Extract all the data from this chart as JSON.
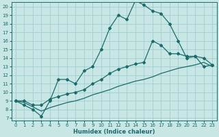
{
  "xlabel": "Humidex (Indice chaleur)",
  "bg_color": "#c8e6e4",
  "grid_color": "#9ecece",
  "line_color": "#1a6b6b",
  "xlim": [
    0,
    23
  ],
  "ylim": [
    7,
    20
  ],
  "xticks": [
    0,
    1,
    2,
    3,
    4,
    5,
    6,
    7,
    8,
    9,
    10,
    11,
    12,
    13,
    14,
    15,
    16,
    17,
    18,
    19,
    20,
    21,
    22,
    23
  ],
  "yticks": [
    7,
    8,
    9,
    10,
    11,
    12,
    13,
    14,
    15,
    16,
    17,
    18,
    19,
    20
  ],
  "line1_x": [
    0,
    1,
    2,
    3,
    4,
    5,
    6,
    7,
    8,
    9,
    10,
    11,
    12,
    13,
    14,
    15,
    16,
    17,
    18,
    19,
    20,
    21,
    22,
    23
  ],
  "line1_y": [
    9.0,
    8.5,
    8.0,
    7.2,
    9.0,
    11.5,
    11.5,
    11.0,
    12.5,
    13.0,
    15.0,
    17.5,
    19.0,
    18.5,
    20.7,
    20.2,
    19.5,
    19.2,
    18.0,
    16.0,
    14.0,
    14.2,
    13.0,
    13.2
  ],
  "line2_x": [
    0,
    1,
    2,
    3,
    4,
    5,
    6,
    7,
    8,
    9,
    10,
    11,
    12,
    13,
    14,
    15,
    16,
    17,
    18,
    19,
    20,
    21,
    22,
    23
  ],
  "line2_y": [
    9.0,
    9.0,
    8.5,
    8.5,
    9.2,
    9.5,
    9.8,
    10.0,
    10.3,
    11.0,
    11.5,
    12.2,
    12.7,
    13.0,
    13.3,
    13.5,
    16.0,
    15.5,
    14.5,
    14.5,
    14.2,
    14.2,
    14.0,
    13.2
  ],
  "line3_x": [
    0,
    1,
    2,
    3,
    4,
    5,
    6,
    7,
    8,
    9,
    10,
    11,
    12,
    13,
    14,
    15,
    16,
    17,
    18,
    19,
    20,
    21,
    22,
    23
  ],
  "line3_y": [
    9.0,
    8.8,
    8.3,
    7.8,
    8.2,
    8.5,
    8.8,
    9.0,
    9.3,
    9.7,
    10.0,
    10.3,
    10.7,
    11.0,
    11.3,
    11.5,
    11.8,
    12.2,
    12.5,
    12.8,
    13.0,
    13.2,
    13.5,
    13.0
  ]
}
